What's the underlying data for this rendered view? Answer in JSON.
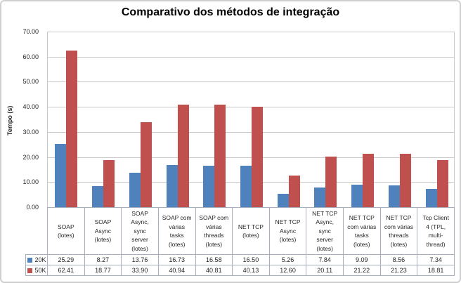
{
  "chart_data": {
    "type": "bar",
    "title": "Comparativo dos métodos de integração",
    "xlabel": "",
    "ylabel": "Tempo (s)",
    "ylim": [
      0,
      70
    ],
    "ytick_step": 10,
    "ytick_decimals": 2,
    "grid": true,
    "legend_position": "data-table-left",
    "data_table_shown": true,
    "categories": [
      "SOAP (lotes)",
      "SOAP Async (lotes)",
      "SOAP Async, sync server (lotes)",
      "SOAP com várias tasks (lotes)",
      "SOAP com várias threads (lotes)",
      "NET TCP (lotes)",
      "NET TCP Async (lotes)",
      "NET TCP Async, sync server (lotes)",
      "NET TCP com várias tasks (lotes)",
      "NET TCP com várias threads (lotes)",
      "Tcp Client 4 (TPL, multi-thread)"
    ],
    "categories_wrapped": [
      "SOAP\n(lotes)",
      "SOAP\nAsync\n(lotes)",
      "SOAP\nAsync,\nsync\nserver\n(lotes)",
      "SOAP com\nvárias\ntasks\n(lotes)",
      "SOAP com\nvárias\nthreads\n(lotes)",
      "NET TCP\n(lotes)",
      "NET TCP\nAsync\n(lotes)",
      "NET TCP\nAsync,\nsync\nserver\n(lotes)",
      "NET TCP\ncom várias\ntasks\n(lotes)",
      "NET TCP\ncom várias\nthreads\n(lotes)",
      "Tcp Client\n4 (TPL,\nmulti-\nthread)"
    ],
    "series": [
      {
        "name": "20K",
        "color": "#4F81BD",
        "values": [
          25.29,
          8.27,
          13.76,
          16.73,
          16.58,
          16.5,
          5.26,
          7.84,
          9.09,
          8.56,
          7.34
        ]
      },
      {
        "name": "50K",
        "color": "#C0504D",
        "values": [
          62.41,
          18.77,
          33.9,
          40.94,
          40.81,
          40.13,
          12.6,
          20.11,
          21.22,
          21.23,
          18.81
        ]
      }
    ]
  }
}
